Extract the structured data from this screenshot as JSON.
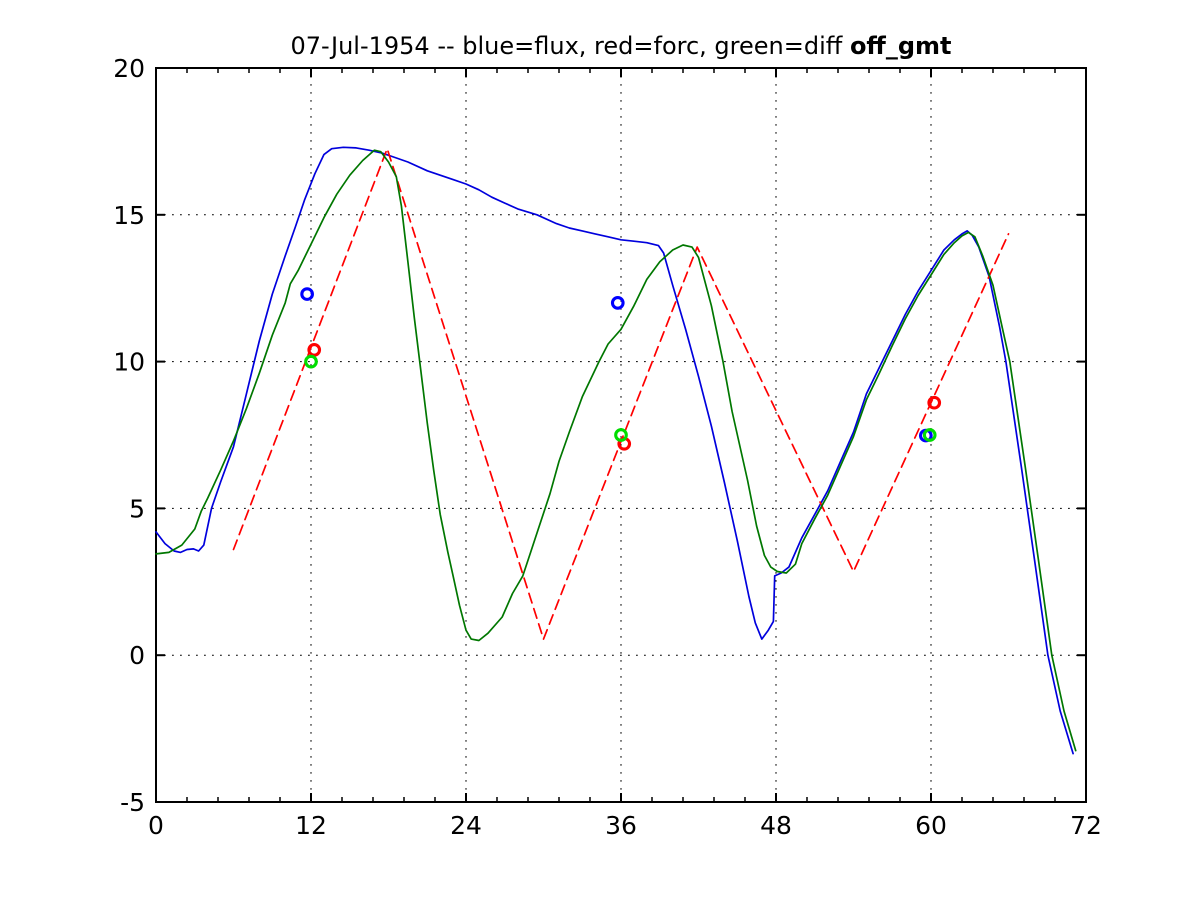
{
  "title": {
    "main": "07-Jul-1954 -- blue=flux, red=forc, green=diff",
    "suffix": "off_gmt"
  },
  "chart_data": {
    "type": "line",
    "title": "07-Jul-1954 -- blue=flux, red=forc, green=diff off_gmt",
    "xlabel": "",
    "ylabel": "",
    "xlim": [
      0,
      72
    ],
    "ylim": [
      -5,
      20
    ],
    "xticks": [
      0,
      12,
      24,
      36,
      48,
      60,
      72
    ],
    "yticks": [
      -5,
      0,
      5,
      10,
      15,
      20
    ],
    "x_minor_step": 2.4,
    "grid": true,
    "grid_style": "dotted",
    "axis_color": "#000000",
    "background": "#ffffff",
    "legend": "encoded in title text",
    "series": [
      {
        "name": "flux",
        "color": "#0000dd",
        "line": "solid",
        "points": [
          [
            0,
            4.2
          ],
          [
            0.7,
            3.8
          ],
          [
            1.4,
            3.55
          ],
          [
            1.9,
            3.5
          ],
          [
            2.4,
            3.6
          ],
          [
            2.9,
            3.62
          ],
          [
            3.3,
            3.55
          ],
          [
            3.7,
            3.75
          ],
          [
            4.3,
            5.0
          ],
          [
            5,
            5.9
          ],
          [
            6,
            7.1
          ],
          [
            7,
            8.9
          ],
          [
            8,
            10.7
          ],
          [
            9,
            12.3
          ],
          [
            10,
            13.6
          ],
          [
            10.8,
            14.6
          ],
          [
            11.5,
            15.5
          ],
          [
            12.3,
            16.4
          ],
          [
            13,
            17.05
          ],
          [
            13.6,
            17.25
          ],
          [
            14.5,
            17.3
          ],
          [
            15.5,
            17.28
          ],
          [
            16.5,
            17.2
          ],
          [
            17.5,
            17.1
          ],
          [
            18.5,
            16.95
          ],
          [
            19.5,
            16.8
          ],
          [
            21,
            16.5
          ],
          [
            22,
            16.35
          ],
          [
            23,
            16.2
          ],
          [
            24,
            16.05
          ],
          [
            25,
            15.85
          ],
          [
            26,
            15.6
          ],
          [
            27,
            15.4
          ],
          [
            28,
            15.2
          ],
          [
            29.5,
            15.0
          ],
          [
            31,
            14.7
          ],
          [
            32,
            14.55
          ],
          [
            33,
            14.45
          ],
          [
            34,
            14.35
          ],
          [
            35,
            14.25
          ],
          [
            36,
            14.15
          ],
          [
            37,
            14.1
          ],
          [
            38,
            14.05
          ],
          [
            38.9,
            13.95
          ],
          [
            39.3,
            13.7
          ],
          [
            40,
            12.6
          ],
          [
            41,
            11.1
          ],
          [
            42,
            9.5
          ],
          [
            43,
            7.8
          ],
          [
            44,
            5.9
          ],
          [
            45,
            3.9
          ],
          [
            45.9,
            2.0
          ],
          [
            46.4,
            1.1
          ],
          [
            46.9,
            0.55
          ],
          [
            47.4,
            0.85
          ],
          [
            47.8,
            1.15
          ],
          [
            47.9,
            2.7
          ],
          [
            48.4,
            2.8
          ],
          [
            49,
            3.0
          ],
          [
            49.5,
            3.5
          ],
          [
            50,
            4.0
          ],
          [
            51,
            4.8
          ],
          [
            52,
            5.6
          ],
          [
            53,
            6.6
          ],
          [
            54,
            7.6
          ],
          [
            55,
            8.9
          ],
          [
            56,
            9.8
          ],
          [
            57,
            10.7
          ],
          [
            58,
            11.6
          ],
          [
            59,
            12.4
          ],
          [
            60,
            13.1
          ],
          [
            61,
            13.8
          ],
          [
            61.8,
            14.15
          ],
          [
            62.4,
            14.35
          ],
          [
            62.8,
            14.45
          ],
          [
            63.2,
            14.3
          ],
          [
            63.7,
            13.9
          ],
          [
            64.5,
            12.9
          ],
          [
            65.3,
            11.2
          ],
          [
            65.8,
            10.0
          ],
          [
            67,
            6.4
          ],
          [
            68,
            3.3
          ],
          [
            69.05,
            0
          ],
          [
            70,
            -1.9
          ],
          [
            71,
            -3.35
          ]
        ]
      },
      {
        "name": "forc",
        "color": "#ff0000",
        "line": "dashed",
        "points": [
          [
            6,
            3.6
          ],
          [
            17.9,
            17.25
          ],
          [
            30,
            0.55
          ],
          [
            41.9,
            13.9
          ],
          [
            54,
            2.85
          ],
          [
            66,
            14.35
          ]
        ]
      },
      {
        "name": "diff",
        "color": "#007700",
        "line": "solid",
        "points": [
          [
            0,
            3.45
          ],
          [
            1,
            3.5
          ],
          [
            2,
            3.75
          ],
          [
            3,
            4.3
          ],
          [
            3.5,
            4.9
          ],
          [
            4,
            5.35
          ],
          [
            5,
            6.3
          ],
          [
            6,
            7.3
          ],
          [
            7,
            8.4
          ],
          [
            8,
            9.6
          ],
          [
            9,
            10.9
          ],
          [
            10,
            12.0
          ],
          [
            10.4,
            12.65
          ],
          [
            11,
            13.1
          ],
          [
            12,
            14.0
          ],
          [
            13,
            14.9
          ],
          [
            14,
            15.7
          ],
          [
            15,
            16.35
          ],
          [
            16,
            16.85
          ],
          [
            16.9,
            17.2
          ],
          [
            17.4,
            17.15
          ],
          [
            18,
            16.8
          ],
          [
            18.6,
            16.3
          ],
          [
            19,
            15.3
          ],
          [
            19.5,
            13.4
          ],
          [
            20,
            11.5
          ],
          [
            20.5,
            9.7
          ],
          [
            21,
            7.9
          ],
          [
            21.5,
            6.3
          ],
          [
            22,
            4.8
          ],
          [
            22.6,
            3.5
          ],
          [
            23,
            2.7
          ],
          [
            23.5,
            1.7
          ],
          [
            24,
            0.85
          ],
          [
            24.4,
            0.55
          ],
          [
            25,
            0.5
          ],
          [
            25.7,
            0.75
          ],
          [
            26.8,
            1.3
          ],
          [
            27.6,
            2.1
          ],
          [
            28.4,
            2.7
          ],
          [
            29,
            3.5
          ],
          [
            29.6,
            4.3
          ],
          [
            30.5,
            5.5
          ],
          [
            31.2,
            6.6
          ],
          [
            32,
            7.6
          ],
          [
            33,
            8.8
          ],
          [
            34.3,
            10.0
          ],
          [
            35,
            10.6
          ],
          [
            36,
            11.1
          ],
          [
            37,
            11.9
          ],
          [
            38,
            12.8
          ],
          [
            39,
            13.4
          ],
          [
            40,
            13.8
          ],
          [
            40.8,
            13.97
          ],
          [
            41.5,
            13.9
          ],
          [
            42,
            13.55
          ],
          [
            43,
            11.9
          ],
          [
            43.9,
            10.0
          ],
          [
            44.6,
            8.3
          ],
          [
            45.8,
            5.95
          ],
          [
            46.5,
            4.4
          ],
          [
            47.1,
            3.4
          ],
          [
            47.6,
            3.0
          ],
          [
            48.1,
            2.85
          ],
          [
            48.8,
            2.8
          ],
          [
            49.5,
            3.1
          ],
          [
            50,
            3.8
          ],
          [
            51,
            4.65
          ],
          [
            52,
            5.45
          ],
          [
            53,
            6.45
          ],
          [
            54,
            7.45
          ],
          [
            55,
            8.7
          ],
          [
            56,
            9.6
          ],
          [
            57,
            10.55
          ],
          [
            58,
            11.45
          ],
          [
            59,
            12.25
          ],
          [
            60,
            12.95
          ],
          [
            61,
            13.65
          ],
          [
            61.8,
            14.05
          ],
          [
            62.4,
            14.28
          ],
          [
            62.9,
            14.4
          ],
          [
            63.4,
            14.25
          ],
          [
            64,
            13.6
          ],
          [
            64.8,
            12.6
          ],
          [
            65.5,
            11.2
          ],
          [
            66.1,
            10.0
          ],
          [
            67.3,
            6.4
          ],
          [
            68.3,
            3.3
          ],
          [
            69.35,
            0
          ],
          [
            70.3,
            -1.9
          ],
          [
            71.2,
            -3.25
          ]
        ]
      }
    ],
    "markers": [
      {
        "name": "flux",
        "color": "#0000ff",
        "points": [
          [
            11.7,
            12.3
          ],
          [
            35.75,
            12.0
          ],
          [
            59.6,
            7.48
          ]
        ]
      },
      {
        "name": "forc",
        "color": "#ff0000",
        "points": [
          [
            12.25,
            10.4
          ],
          [
            36.25,
            7.2
          ],
          [
            60.25,
            8.6
          ]
        ]
      },
      {
        "name": "diff",
        "color": "#00dd00",
        "points": [
          [
            12.0,
            10.0
          ],
          [
            36.0,
            7.5
          ],
          [
            59.9,
            7.5
          ]
        ]
      }
    ]
  }
}
